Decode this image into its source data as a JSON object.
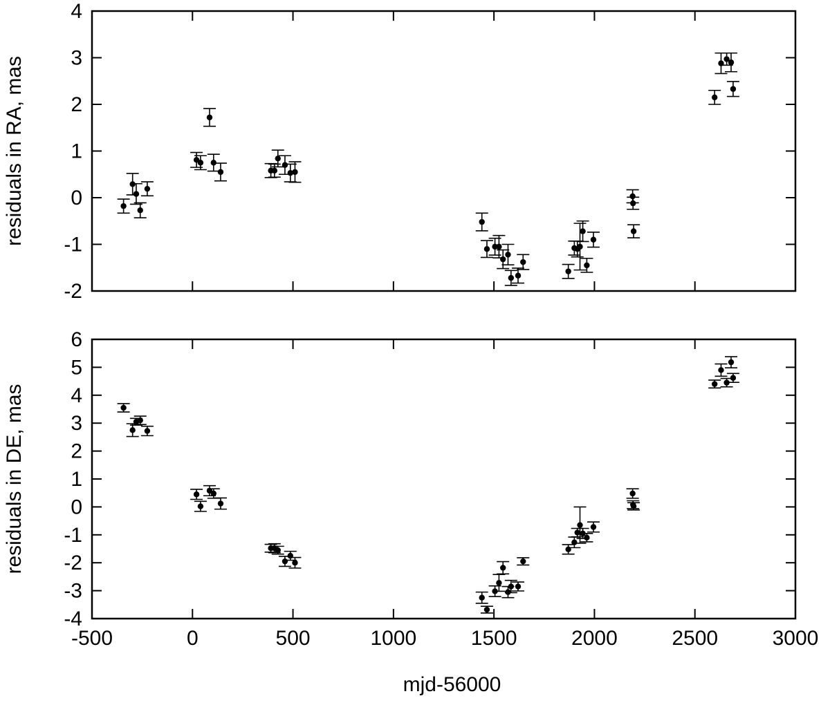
{
  "chart_data": [
    {
      "type": "scatter",
      "xlabel": "",
      "ylabel": "residuals in RA, mas",
      "xlim": [
        -500,
        3000
      ],
      "ylim": [
        -2,
        4
      ],
      "x_ticks": [
        "-500",
        "0",
        "500",
        "1000",
        "1500",
        "2000",
        "2500",
        "3000"
      ],
      "y_ticks": [
        "-2",
        "-1",
        "0",
        "1",
        "2",
        "3",
        "4"
      ],
      "show_x_tick_labels": false,
      "error_bars": true,
      "points": [
        {
          "x": -343,
          "y": -0.18,
          "err": 0.15
        },
        {
          "x": -298,
          "y": 0.29,
          "err": 0.23
        },
        {
          "x": -280,
          "y": 0.08,
          "err": 0.22
        },
        {
          "x": -260,
          "y": -0.27,
          "err": 0.16
        },
        {
          "x": -225,
          "y": 0.19,
          "err": 0.15
        },
        {
          "x": 20,
          "y": 0.81,
          "err": 0.16
        },
        {
          "x": 40,
          "y": 0.75,
          "err": 0.15
        },
        {
          "x": 85,
          "y": 1.72,
          "err": 0.19
        },
        {
          "x": 105,
          "y": 0.75,
          "err": 0.18
        },
        {
          "x": 140,
          "y": 0.55,
          "err": 0.19
        },
        {
          "x": 390,
          "y": 0.58,
          "err": 0.15
        },
        {
          "x": 408,
          "y": 0.58,
          "err": 0.14
        },
        {
          "x": 425,
          "y": 0.84,
          "err": 0.18
        },
        {
          "x": 460,
          "y": 0.7,
          "err": 0.2
        },
        {
          "x": 487,
          "y": 0.53,
          "err": 0.19
        },
        {
          "x": 510,
          "y": 0.55,
          "err": 0.22
        },
        {
          "x": 1440,
          "y": -0.52,
          "err": 0.19
        },
        {
          "x": 1465,
          "y": -1.1,
          "err": 0.18
        },
        {
          "x": 1505,
          "y": -1.05,
          "err": 0.18
        },
        {
          "x": 1525,
          "y": -1.05,
          "err": 0.24
        },
        {
          "x": 1545,
          "y": -1.32,
          "err": 0.2
        },
        {
          "x": 1570,
          "y": -1.22,
          "err": 0.22
        },
        {
          "x": 1585,
          "y": -1.72,
          "err": 0.16
        },
        {
          "x": 1620,
          "y": -1.67,
          "err": 0.16
        },
        {
          "x": 1645,
          "y": -1.38,
          "err": 0.16
        },
        {
          "x": 1870,
          "y": -1.58,
          "err": 0.15
        },
        {
          "x": 1900,
          "y": -1.08,
          "err": 0.15
        },
        {
          "x": 1915,
          "y": -1.1,
          "err": 0.17
        },
        {
          "x": 1928,
          "y": -1.05,
          "err": 0.5
        },
        {
          "x": 1942,
          "y": -0.72,
          "err": 0.22
        },
        {
          "x": 1962,
          "y": -1.45,
          "err": 0.15
        },
        {
          "x": 1995,
          "y": -0.9,
          "err": 0.16
        },
        {
          "x": 2190,
          "y": 0.03,
          "err": 0.14
        },
        {
          "x": 2192,
          "y": -0.12,
          "err": 0.13
        },
        {
          "x": 2195,
          "y": -0.72,
          "err": 0.14
        },
        {
          "x": 2598,
          "y": 2.15,
          "err": 0.15
        },
        {
          "x": 2630,
          "y": 2.88,
          "err": 0.22
        },
        {
          "x": 2658,
          "y": 2.97,
          "err": 0.13
        },
        {
          "x": 2680,
          "y": 2.9,
          "err": 0.2
        },
        {
          "x": 2690,
          "y": 2.33,
          "err": 0.16
        }
      ]
    },
    {
      "type": "scatter",
      "xlabel": "mjd-56000",
      "ylabel": "residuals in DE, mas",
      "xlim": [
        -500,
        3000
      ],
      "ylim": [
        -4,
        6
      ],
      "x_ticks": [
        "-500",
        "0",
        "500",
        "1000",
        "1500",
        "2000",
        "2500",
        "3000"
      ],
      "y_ticks": [
        "-4",
        "-3",
        "-2",
        "-1",
        "0",
        "1",
        "2",
        "3",
        "4",
        "5",
        "6"
      ],
      "show_x_tick_labels": true,
      "error_bars": true,
      "points": [
        {
          "x": -343,
          "y": 3.55,
          "err": 0.15
        },
        {
          "x": -298,
          "y": 2.75,
          "err": 0.23
        },
        {
          "x": -280,
          "y": 3.05,
          "err": 0.12
        },
        {
          "x": -260,
          "y": 3.1,
          "err": 0.15
        },
        {
          "x": -225,
          "y": 2.72,
          "err": 0.17
        },
        {
          "x": 20,
          "y": 0.45,
          "err": 0.18
        },
        {
          "x": 40,
          "y": 0.02,
          "err": 0.18
        },
        {
          "x": 85,
          "y": 0.58,
          "err": 0.18
        },
        {
          "x": 105,
          "y": 0.48,
          "err": 0.17
        },
        {
          "x": 140,
          "y": 0.12,
          "err": 0.2
        },
        {
          "x": 390,
          "y": -1.48,
          "err": 0.14
        },
        {
          "x": 408,
          "y": -1.48,
          "err": 0.16
        },
        {
          "x": 425,
          "y": -1.55,
          "err": 0.14
        },
        {
          "x": 460,
          "y": -1.95,
          "err": 0.18
        },
        {
          "x": 487,
          "y": -1.75,
          "err": 0.16
        },
        {
          "x": 510,
          "y": -2.0,
          "err": 0.19
        },
        {
          "x": 1440,
          "y": -3.25,
          "err": 0.2
        },
        {
          "x": 1465,
          "y": -3.68,
          "err": 0.12
        },
        {
          "x": 1505,
          "y": -3.02,
          "err": 0.19
        },
        {
          "x": 1525,
          "y": -2.72,
          "err": 0.3
        },
        {
          "x": 1545,
          "y": -2.18,
          "err": 0.22
        },
        {
          "x": 1570,
          "y": -3.05,
          "err": 0.2
        },
        {
          "x": 1585,
          "y": -2.85,
          "err": 0.22
        },
        {
          "x": 1620,
          "y": -2.85,
          "err": 0.16
        },
        {
          "x": 1645,
          "y": -1.95,
          "err": 0.13
        },
        {
          "x": 1870,
          "y": -1.52,
          "err": 0.17
        },
        {
          "x": 1900,
          "y": -1.27,
          "err": 0.19
        },
        {
          "x": 1915,
          "y": -0.92,
          "err": 0.15
        },
        {
          "x": 1928,
          "y": -0.65,
          "err": 0.65
        },
        {
          "x": 1942,
          "y": -0.95,
          "err": 0.18
        },
        {
          "x": 1962,
          "y": -1.1,
          "err": 0.15
        },
        {
          "x": 1995,
          "y": -0.72,
          "err": 0.18
        },
        {
          "x": 2190,
          "y": 0.48,
          "err": 0.17
        },
        {
          "x": 2192,
          "y": 0.08,
          "err": 0.14
        },
        {
          "x": 2195,
          "y": 0.02,
          "err": 0.13
        },
        {
          "x": 2598,
          "y": 4.4,
          "err": 0.14
        },
        {
          "x": 2630,
          "y": 4.9,
          "err": 0.22
        },
        {
          "x": 2658,
          "y": 4.45,
          "err": 0.15
        },
        {
          "x": 2680,
          "y": 5.18,
          "err": 0.2
        },
        {
          "x": 2690,
          "y": 4.62,
          "err": 0.16
        }
      ]
    }
  ]
}
